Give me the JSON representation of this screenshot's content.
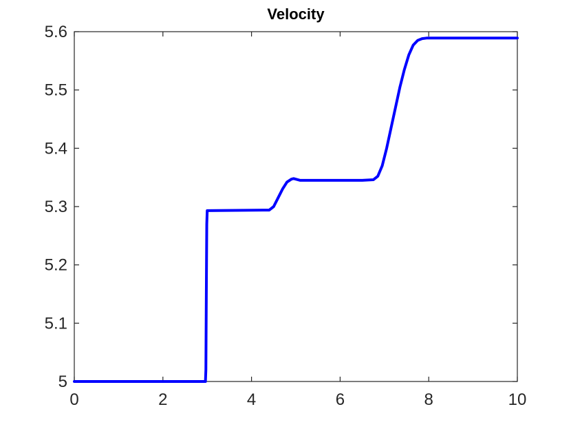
{
  "chart_data": {
    "type": "line",
    "title": "Velocity",
    "xlabel": "",
    "ylabel": "",
    "xlim": [
      0,
      10
    ],
    "ylim": [
      5,
      5.6
    ],
    "x_ticks": [
      0,
      2,
      4,
      6,
      8,
      10
    ],
    "x_tick_labels": [
      "0",
      "2",
      "4",
      "6",
      "8",
      "10"
    ],
    "y_ticks": [
      5,
      5.1,
      5.2,
      5.3,
      5.4,
      5.5,
      5.6
    ],
    "y_tick_labels": [
      "5",
      "5.1",
      "5.2",
      "5.3",
      "5.4",
      "5.5",
      "5.6"
    ],
    "grid": false,
    "legend": "none",
    "series": [
      {
        "color": "#0000ff",
        "x": [
          0,
          2.96,
          2.97,
          2.98,
          2.99,
          3.0,
          3.02,
          4.4,
          4.5,
          4.6,
          4.7,
          4.8,
          4.9,
          4.95,
          5.0,
          5.05,
          5.1,
          5.2,
          5.4,
          6.5,
          6.75,
          6.85,
          6.95,
          7.05,
          7.15,
          7.25,
          7.35,
          7.45,
          7.55,
          7.65,
          7.75,
          7.85,
          7.95,
          8.05,
          8.2,
          10
        ],
        "y": [
          5.0,
          5.0,
          5.02,
          5.15,
          5.27,
          5.293,
          5.293,
          5.294,
          5.3,
          5.315,
          5.33,
          5.342,
          5.347,
          5.348,
          5.347,
          5.346,
          5.345,
          5.345,
          5.345,
          5.345,
          5.346,
          5.352,
          5.37,
          5.4,
          5.435,
          5.47,
          5.505,
          5.535,
          5.56,
          5.577,
          5.585,
          5.588,
          5.589,
          5.589,
          5.589,
          5.589
        ]
      }
    ]
  }
}
